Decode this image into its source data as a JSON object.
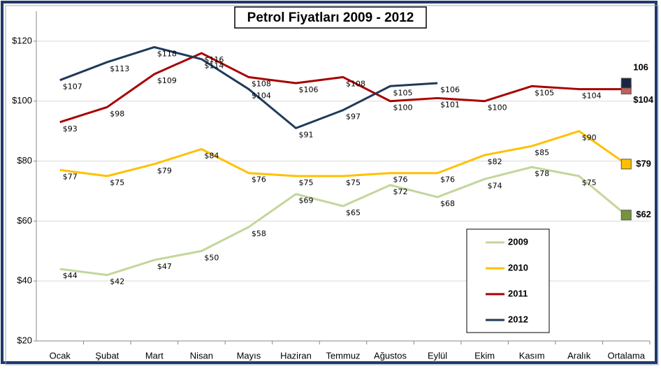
{
  "chart_data": {
    "type": "line",
    "title": "Petrol Fiyatları 2009 - 2012",
    "categories": [
      "Ocak",
      "Şubat",
      "Mart",
      "Nisan",
      "Mayıs",
      "Haziran",
      "Temmuz",
      "Ağustos",
      "Eylül",
      "Ekim",
      "Kasım",
      "Aralık",
      "Ortalama"
    ],
    "series": [
      {
        "name": "2009",
        "color": "#c3d69b",
        "marker_color": "#77933c",
        "values": [
          44,
          42,
          47,
          50,
          58,
          69,
          65,
          72,
          68,
          74,
          78,
          75,
          62
        ],
        "value_labels": [
          "$44",
          "$42",
          "$47",
          "$50",
          "$58",
          "$69",
          "$65",
          "$72",
          "$68",
          "$74",
          "$78",
          "$75",
          "$62"
        ]
      },
      {
        "name": "2010",
        "color": "#ffc000",
        "marker_color": "#ffc000",
        "values": [
          77,
          75,
          79,
          84,
          76,
          75,
          75,
          76,
          76,
          82,
          85,
          90,
          79
        ],
        "value_labels": [
          "$77",
          "$75",
          "$79",
          "$84",
          "$76",
          "$75",
          "$75",
          "$76",
          "$76",
          "$82",
          "$85",
          "$90",
          "$79"
        ]
      },
      {
        "name": "2011",
        "color": "#a80000",
        "marker_color": "#c0605a",
        "values": [
          93,
          98,
          109,
          116,
          108,
          106,
          108,
          100,
          101,
          100,
          105,
          104,
          104
        ],
        "value_labels": [
          "$93",
          "$98",
          "$109",
          "$116",
          "$108",
          "$106",
          "$108",
          "$100",
          "$101",
          "$100",
          "$105",
          "$104",
          "$104"
        ]
      },
      {
        "name": "2012",
        "color": "#1f3a5a",
        "marker_color": "#1a2444",
        "values": [
          107,
          113,
          118,
          114,
          104,
          91,
          97,
          105,
          106,
          null,
          null,
          null,
          106
        ],
        "value_labels": [
          "$107",
          "$113",
          "$118",
          "$114",
          "$104",
          "$91",
          "$97",
          "$105",
          "$106",
          null,
          null,
          null,
          "106"
        ]
      }
    ],
    "ylim": [
      20,
      130
    ],
    "yticks": [
      {
        "value": 20,
        "label": "$20"
      },
      {
        "value": 40,
        "label": "$40"
      },
      {
        "value": 60,
        "label": "$60"
      },
      {
        "value": 80,
        "label": "$80"
      },
      {
        "value": 100,
        "label": "$100"
      },
      {
        "value": 120,
        "label": "$120"
      }
    ],
    "grid": true,
    "legend": "lower right"
  }
}
